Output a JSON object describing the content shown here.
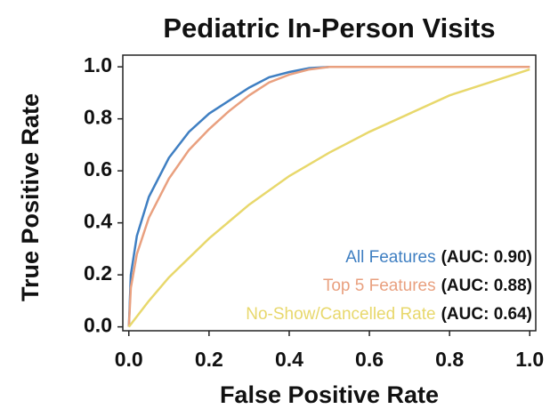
{
  "chart_data": {
    "type": "line",
    "title": "Pediatric In-Person Visits",
    "xlabel": "False Positive Rate",
    "ylabel": "True Positive Rate",
    "xlim": [
      -0.015,
      1.015
    ],
    "ylim": [
      -0.015,
      1.045
    ],
    "xticks": [
      {
        "value": 0,
        "label": "0.0"
      },
      0.2,
      0.4,
      0.6,
      0.8,
      {
        "value": 1,
        "label": "1.0"
      }
    ],
    "yticks": [
      {
        "value": 0,
        "label": "0.0"
      },
      0.2,
      0.4,
      0.6,
      0.8,
      {
        "value": 1,
        "label": "1.0"
      }
    ],
    "grid": false,
    "legend": "lower right",
    "series": [
      {
        "name": "All Features",
        "auc_label": "(AUC: 0.90)",
        "color": "#3f7fc2",
        "x": [
          0,
          0.005,
          0.02,
          0.05,
          0.1,
          0.15,
          0.2,
          0.25,
          0.3,
          0.35,
          0.4,
          0.45,
          0.5,
          1.0
        ],
        "values": [
          0,
          0.2,
          0.35,
          0.5,
          0.65,
          0.75,
          0.82,
          0.87,
          0.92,
          0.96,
          0.98,
          0.995,
          1.0,
          1.0
        ]
      },
      {
        "name": "Top 5 Features",
        "auc_label": "(AUC: 0.88)",
        "color": "#e9a07f",
        "x": [
          0,
          0.005,
          0.02,
          0.05,
          0.1,
          0.15,
          0.2,
          0.25,
          0.3,
          0.35,
          0.4,
          0.45,
          0.5,
          1.0
        ],
        "values": [
          0,
          0.15,
          0.28,
          0.42,
          0.57,
          0.68,
          0.76,
          0.83,
          0.89,
          0.94,
          0.97,
          0.99,
          1.0,
          1.0
        ]
      },
      {
        "name": "No-Show/Cancelled Rate",
        "auc_label": "(AUC: 0.64)",
        "color": "#e8d86c",
        "x": [
          0,
          0.05,
          0.1,
          0.2,
          0.3,
          0.4,
          0.5,
          0.6,
          0.7,
          0.8,
          0.9,
          1.0
        ],
        "values": [
          0,
          0.1,
          0.19,
          0.34,
          0.47,
          0.58,
          0.67,
          0.75,
          0.82,
          0.89,
          0.94,
          0.99
        ]
      }
    ]
  }
}
